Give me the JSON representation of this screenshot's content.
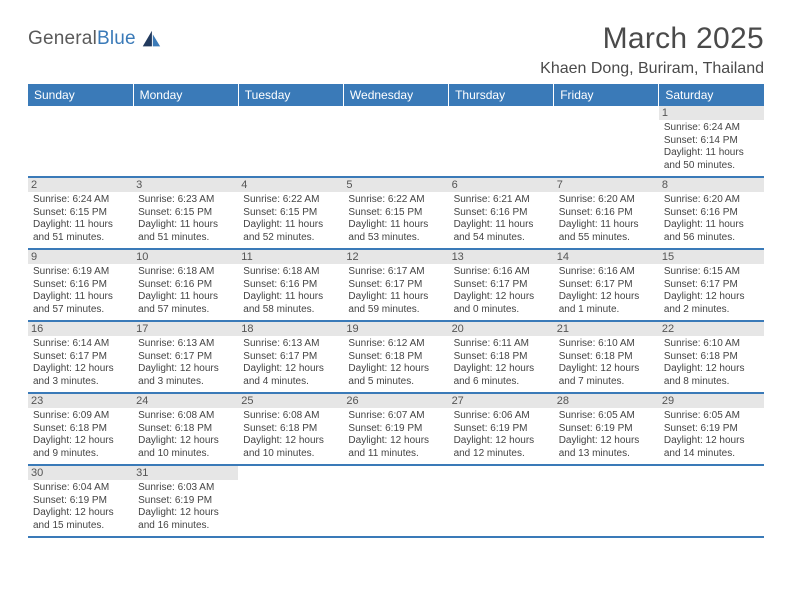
{
  "logo": {
    "text1": "General",
    "text2": "Blue"
  },
  "title": "March 2025",
  "location": "Khaen Dong, Buriram, Thailand",
  "colors": {
    "header_bg": "#3a7ab8",
    "row_divider": "#3a7ab8",
    "daynum_bg": "#e6e6e6",
    "text": "#444444",
    "page_bg": "#ffffff"
  },
  "weekdays": [
    "Sunday",
    "Monday",
    "Tuesday",
    "Wednesday",
    "Thursday",
    "Friday",
    "Saturday"
  ],
  "weeks": [
    [
      null,
      null,
      null,
      null,
      null,
      null,
      {
        "n": "1",
        "sr": "Sunrise: 6:24 AM",
        "ss": "Sunset: 6:14 PM",
        "dl": "Daylight: 11 hours and 50 minutes."
      }
    ],
    [
      {
        "n": "2",
        "sr": "Sunrise: 6:24 AM",
        "ss": "Sunset: 6:15 PM",
        "dl": "Daylight: 11 hours and 51 minutes."
      },
      {
        "n": "3",
        "sr": "Sunrise: 6:23 AM",
        "ss": "Sunset: 6:15 PM",
        "dl": "Daylight: 11 hours and 51 minutes."
      },
      {
        "n": "4",
        "sr": "Sunrise: 6:22 AM",
        "ss": "Sunset: 6:15 PM",
        "dl": "Daylight: 11 hours and 52 minutes."
      },
      {
        "n": "5",
        "sr": "Sunrise: 6:22 AM",
        "ss": "Sunset: 6:15 PM",
        "dl": "Daylight: 11 hours and 53 minutes."
      },
      {
        "n": "6",
        "sr": "Sunrise: 6:21 AM",
        "ss": "Sunset: 6:16 PM",
        "dl": "Daylight: 11 hours and 54 minutes."
      },
      {
        "n": "7",
        "sr": "Sunrise: 6:20 AM",
        "ss": "Sunset: 6:16 PM",
        "dl": "Daylight: 11 hours and 55 minutes."
      },
      {
        "n": "8",
        "sr": "Sunrise: 6:20 AM",
        "ss": "Sunset: 6:16 PM",
        "dl": "Daylight: 11 hours and 56 minutes."
      }
    ],
    [
      {
        "n": "9",
        "sr": "Sunrise: 6:19 AM",
        "ss": "Sunset: 6:16 PM",
        "dl": "Daylight: 11 hours and 57 minutes."
      },
      {
        "n": "10",
        "sr": "Sunrise: 6:18 AM",
        "ss": "Sunset: 6:16 PM",
        "dl": "Daylight: 11 hours and 57 minutes."
      },
      {
        "n": "11",
        "sr": "Sunrise: 6:18 AM",
        "ss": "Sunset: 6:16 PM",
        "dl": "Daylight: 11 hours and 58 minutes."
      },
      {
        "n": "12",
        "sr": "Sunrise: 6:17 AM",
        "ss": "Sunset: 6:17 PM",
        "dl": "Daylight: 11 hours and 59 minutes."
      },
      {
        "n": "13",
        "sr": "Sunrise: 6:16 AM",
        "ss": "Sunset: 6:17 PM",
        "dl": "Daylight: 12 hours and 0 minutes."
      },
      {
        "n": "14",
        "sr": "Sunrise: 6:16 AM",
        "ss": "Sunset: 6:17 PM",
        "dl": "Daylight: 12 hours and 1 minute."
      },
      {
        "n": "15",
        "sr": "Sunrise: 6:15 AM",
        "ss": "Sunset: 6:17 PM",
        "dl": "Daylight: 12 hours and 2 minutes."
      }
    ],
    [
      {
        "n": "16",
        "sr": "Sunrise: 6:14 AM",
        "ss": "Sunset: 6:17 PM",
        "dl": "Daylight: 12 hours and 3 minutes."
      },
      {
        "n": "17",
        "sr": "Sunrise: 6:13 AM",
        "ss": "Sunset: 6:17 PM",
        "dl": "Daylight: 12 hours and 3 minutes."
      },
      {
        "n": "18",
        "sr": "Sunrise: 6:13 AM",
        "ss": "Sunset: 6:17 PM",
        "dl": "Daylight: 12 hours and 4 minutes."
      },
      {
        "n": "19",
        "sr": "Sunrise: 6:12 AM",
        "ss": "Sunset: 6:18 PM",
        "dl": "Daylight: 12 hours and 5 minutes."
      },
      {
        "n": "20",
        "sr": "Sunrise: 6:11 AM",
        "ss": "Sunset: 6:18 PM",
        "dl": "Daylight: 12 hours and 6 minutes."
      },
      {
        "n": "21",
        "sr": "Sunrise: 6:10 AM",
        "ss": "Sunset: 6:18 PM",
        "dl": "Daylight: 12 hours and 7 minutes."
      },
      {
        "n": "22",
        "sr": "Sunrise: 6:10 AM",
        "ss": "Sunset: 6:18 PM",
        "dl": "Daylight: 12 hours and 8 minutes."
      }
    ],
    [
      {
        "n": "23",
        "sr": "Sunrise: 6:09 AM",
        "ss": "Sunset: 6:18 PM",
        "dl": "Daylight: 12 hours and 9 minutes."
      },
      {
        "n": "24",
        "sr": "Sunrise: 6:08 AM",
        "ss": "Sunset: 6:18 PM",
        "dl": "Daylight: 12 hours and 10 minutes."
      },
      {
        "n": "25",
        "sr": "Sunrise: 6:08 AM",
        "ss": "Sunset: 6:18 PM",
        "dl": "Daylight: 12 hours and 10 minutes."
      },
      {
        "n": "26",
        "sr": "Sunrise: 6:07 AM",
        "ss": "Sunset: 6:19 PM",
        "dl": "Daylight: 12 hours and 11 minutes."
      },
      {
        "n": "27",
        "sr": "Sunrise: 6:06 AM",
        "ss": "Sunset: 6:19 PM",
        "dl": "Daylight: 12 hours and 12 minutes."
      },
      {
        "n": "28",
        "sr": "Sunrise: 6:05 AM",
        "ss": "Sunset: 6:19 PM",
        "dl": "Daylight: 12 hours and 13 minutes."
      },
      {
        "n": "29",
        "sr": "Sunrise: 6:05 AM",
        "ss": "Sunset: 6:19 PM",
        "dl": "Daylight: 12 hours and 14 minutes."
      }
    ],
    [
      {
        "n": "30",
        "sr": "Sunrise: 6:04 AM",
        "ss": "Sunset: 6:19 PM",
        "dl": "Daylight: 12 hours and 15 minutes."
      },
      {
        "n": "31",
        "sr": "Sunrise: 6:03 AM",
        "ss": "Sunset: 6:19 PM",
        "dl": "Daylight: 12 hours and 16 minutes."
      },
      null,
      null,
      null,
      null,
      null
    ]
  ]
}
